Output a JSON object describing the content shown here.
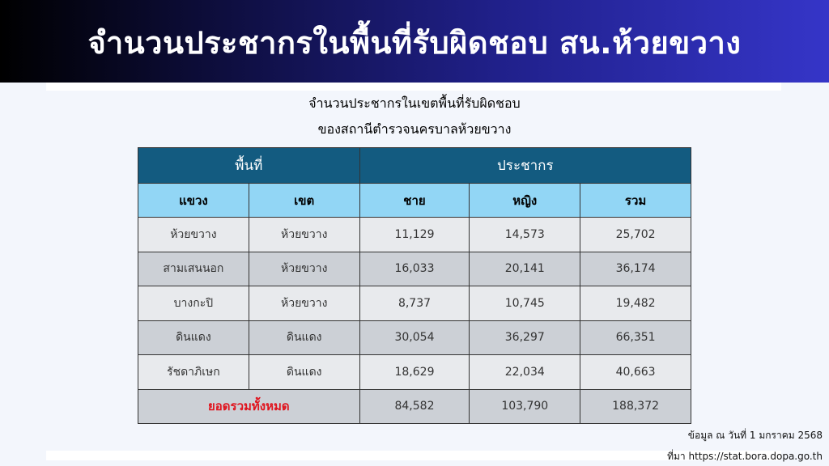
{
  "header": {
    "title": "จำนวนประชากรในพื้นที่รับผิดชอบ สน.ห้วยขวาง"
  },
  "subtitle": {
    "line1": "จำนวนประชากรในเขตพื้นที่รับผิดชอบ",
    "line2": "ของสถานีตำรวจนครบาลห้วยขวาง"
  },
  "table": {
    "group_headers": [
      "พื้นที่",
      "ประชากร"
    ],
    "columns": [
      "แขวง",
      "เขต",
      "ชาย",
      "หญิง",
      "รวม"
    ],
    "rows": [
      [
        "ห้วยขวาง",
        "ห้วยขวาง",
        "11,129",
        "14,573",
        "25,702"
      ],
      [
        "สามเสนนอก",
        "ห้วยขวาง",
        "16,033",
        "20,141",
        "36,174"
      ],
      [
        "บางกะปิ",
        "ห้วยขวาง",
        "8,737",
        "10,745",
        "19,482"
      ],
      [
        "ดินแดง",
        "ดินแดง",
        "30,054",
        "36,297",
        "66,351"
      ],
      [
        "รัชดาภิเษก",
        "ดินแดง",
        "18,629",
        "22,034",
        "40,663"
      ]
    ],
    "total": {
      "label": "ยอดรวมทั้งหมด",
      "male": "84,582",
      "female": "103,790",
      "sum": "188,372"
    }
  },
  "footer": {
    "date_note": "ข้อมูล ณ วันที่ 1 มกราคม 2568",
    "source": "ที่มา https://stat.bora.dopa.go.th"
  },
  "colors": {
    "header_dark": "#135b80",
    "header_light": "#92d6f5",
    "total_label": "#e0141e"
  }
}
